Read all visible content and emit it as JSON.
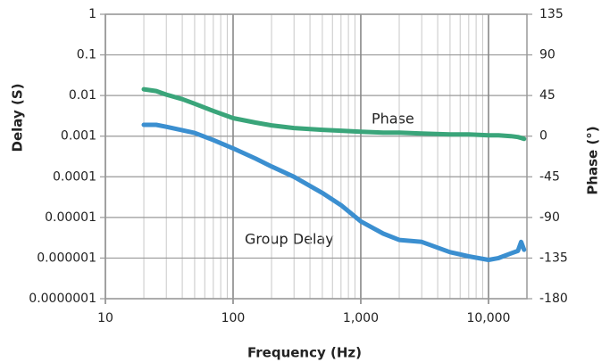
{
  "chart_data": {
    "type": "line",
    "xlabel": "Frequency (Hz)",
    "ylabel": "Delay (S)",
    "y2label": "Phase (°)",
    "xscale": "log",
    "yscale": "log",
    "grid": true,
    "xlim": [
      10,
      20000
    ],
    "xticks": [
      10,
      100,
      {
        "value": 1000,
        "label": "1,000"
      },
      {
        "value": 10000,
        "label": "10,000"
      }
    ],
    "ylim": [
      1e-07,
      1
    ],
    "yticks": [
      1,
      0.1,
      0.01,
      0.001,
      0.0001,
      1e-05,
      1e-06,
      {
        "value": 1e-07,
        "label": "0.0000001"
      }
    ],
    "y2lim": [
      -180,
      135
    ],
    "y2ticks": [
      135,
      90,
      45,
      0,
      -45,
      -90,
      -135,
      -180
    ],
    "x": [
      20,
      25,
      30,
      40,
      50,
      70,
      100,
      150,
      200,
      300,
      500,
      700,
      1000,
      1500,
      2000,
      3000,
      5000,
      7000,
      10000,
      12000,
      15000,
      17000,
      18000,
      19000
    ],
    "series": [
      {
        "name": "Phase",
        "color": "#3aa57a",
        "axis": "y2",
        "values": [
          52,
          50,
          46,
          41,
          36,
          28,
          20,
          15,
          12,
          9,
          7,
          6,
          5,
          4,
          4,
          3,
          2,
          2,
          1,
          1,
          0,
          -1,
          -2,
          -3
        ]
      },
      {
        "name": "Group Delay",
        "color": "#3b8fd0",
        "values": [
          0.0019,
          0.0019,
          0.0017,
          0.0014,
          0.0012,
          0.0008,
          0.0005,
          0.00028,
          0.00018,
          0.0001,
          4e-05,
          2e-05,
          8e-06,
          4e-06,
          2.8e-06,
          2.5e-06,
          1.4e-06,
          1.1e-06,
          9e-07,
          1e-06,
          1.3e-06,
          1.5e-06,
          2.5e-06,
          1.6e-06
        ]
      }
    ]
  }
}
